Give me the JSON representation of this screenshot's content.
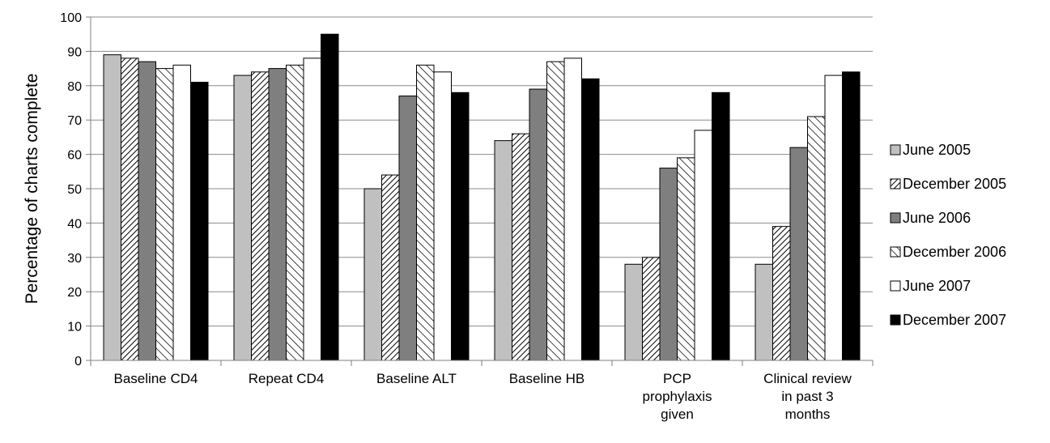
{
  "chart_data": {
    "type": "bar",
    "title": "",
    "xlabel": "",
    "ylabel": "Percentage of charts complete",
    "ylim": [
      0,
      100
    ],
    "ytick_step": 10,
    "grid": true,
    "legend_position": "right",
    "categories": [
      [
        "Baseline CD4"
      ],
      [
        "Repeat CD4"
      ],
      [
        "Baseline ALT"
      ],
      [
        "Baseline HB"
      ],
      [
        "PCP",
        "prophylaxis",
        "given"
      ],
      [
        "Clinical review",
        "in past 3",
        "months"
      ]
    ],
    "series": [
      {
        "name": "June 2005",
        "pattern": "light-gray",
        "values": [
          89,
          83,
          50,
          64,
          28,
          28
        ]
      },
      {
        "name": "December 2005",
        "pattern": "dense-diagonal-hatch",
        "values": [
          88,
          84,
          54,
          66,
          30,
          39
        ]
      },
      {
        "name": "June 2006",
        "pattern": "dark-gray",
        "values": [
          87,
          85,
          77,
          79,
          56,
          62
        ]
      },
      {
        "name": "December 2006",
        "pattern": "wide-diagonal-hatch",
        "values": [
          85,
          86,
          86,
          87,
          59,
          71
        ]
      },
      {
        "name": "June 2007",
        "pattern": "white",
        "values": [
          86,
          88,
          84,
          88,
          67,
          83
        ]
      },
      {
        "name": "December 2007",
        "pattern": "black",
        "values": [
          81,
          95,
          78,
          82,
          78,
          84
        ]
      }
    ]
  }
}
